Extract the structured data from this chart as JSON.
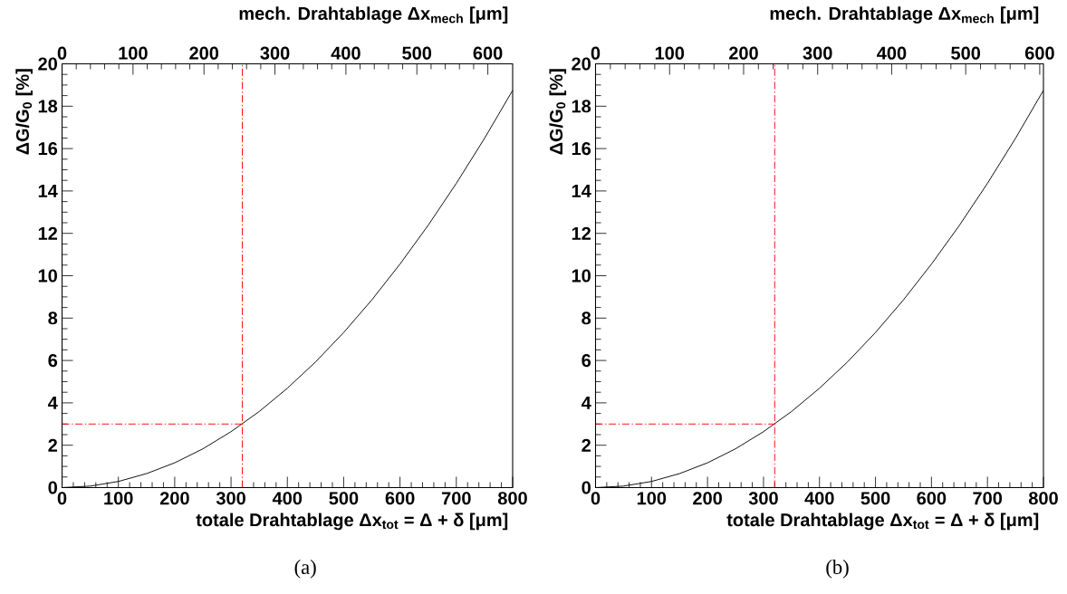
{
  "chart_data": [
    {
      "type": "line",
      "xlabel": "totale Drahtablage  Δx$_{tot}$ = Δ + δ [μm]",
      "x2label": "mech. Drahtablage  Δx$_{mech}$ [μm]",
      "ylabel": "ΔG/G$_{0}$ [%]",
      "annotations": [
        "(a)"
      ],
      "xlim": [
        0,
        800
      ],
      "xticks": [
        0,
        100,
        200,
        300,
        400,
        500,
        600,
        700,
        800
      ],
      "x2lim": [
        0,
        635
      ],
      "x2ticks": [
        0,
        100,
        200,
        300,
        400,
        500,
        600
      ],
      "ylim": [
        0,
        20
      ],
      "yticks": [
        0,
        2,
        4,
        6,
        8,
        10,
        12,
        14,
        16,
        18,
        20
      ],
      "series": [
        {
          "color": "#000000",
          "x": [
            0,
            50,
            100,
            150,
            200,
            250,
            300,
            350,
            400,
            450,
            500,
            550,
            600,
            650,
            700,
            750,
            800
          ],
          "values": [
            0,
            0.07,
            0.29,
            0.66,
            1.17,
            1.83,
            2.64,
            3.59,
            4.69,
            5.93,
            7.32,
            8.86,
            10.55,
            12.38,
            14.36,
            16.48,
            18.75
          ]
        },
        {
          "color": "#ff0000",
          "line_style": "dashdot",
          "x": [
            320,
            320
          ],
          "values": [
            0,
            20
          ]
        },
        {
          "color": "#ff0000",
          "line_style": "dashdot",
          "x": [
            0,
            320
          ],
          "values": [
            3,
            3
          ]
        }
      ]
    },
    {
      "type": "line",
      "xlabel": "totale Drahtablage  Δx$_{tot}$ = Δ + δ [μm]",
      "x2label": "mech. Drahtablage  Δx$_{mech}$ [μm]",
      "ylabel": "ΔG/G$_{0}$ [%]",
      "annotations": [
        "(b)"
      ],
      "xlim": [
        0,
        800
      ],
      "xticks": [
        0,
        100,
        200,
        300,
        400,
        500,
        600,
        700,
        800
      ],
      "x2lim": [
        0,
        605
      ],
      "x2ticks": [
        0,
        100,
        200,
        300,
        400,
        500,
        600
      ],
      "ylim": [
        0,
        20
      ],
      "yticks": [
        0,
        2,
        4,
        6,
        8,
        10,
        12,
        14,
        16,
        18,
        20
      ],
      "series": [
        {
          "color": "#000000",
          "x": [
            0,
            50,
            100,
            150,
            200,
            250,
            300,
            350,
            400,
            450,
            500,
            550,
            600,
            650,
            700,
            750,
            800
          ],
          "values": [
            0,
            0.07,
            0.29,
            0.66,
            1.17,
            1.83,
            2.64,
            3.59,
            4.69,
            5.93,
            7.32,
            8.86,
            10.55,
            12.38,
            14.36,
            16.48,
            18.75
          ]
        },
        {
          "color": "#ff0000",
          "line_style": "dashdot",
          "x": [
            320,
            320
          ],
          "values": [
            0,
            20
          ]
        },
        {
          "color": "#ff0000",
          "line_style": "dashdot",
          "x": [
            0,
            320
          ],
          "values": [
            3,
            3
          ]
        }
      ]
    }
  ]
}
